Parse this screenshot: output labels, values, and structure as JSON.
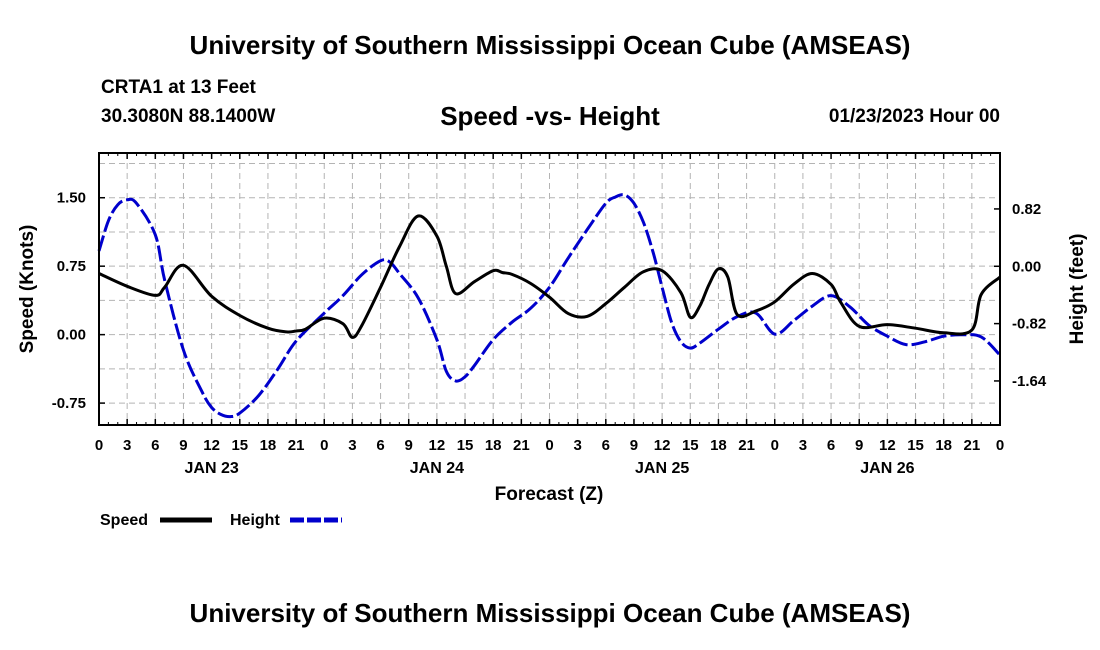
{
  "header": {
    "title": "University of Southern Mississippi Ocean Cube (AMSEAS)",
    "station": "CRTA1 at 13 Feet",
    "coords": "30.3080N  88.1400W",
    "subtitle": "Speed -vs- Height",
    "date": "01/23/2023 Hour 00"
  },
  "footer": {
    "title": "University of Southern Mississippi Ocean Cube (AMSEAS)"
  },
  "chart_data": {
    "type": "line",
    "xlabel": "Forecast (Z)",
    "ylabel_left": "Speed (Knots)",
    "ylabel_right": "Height (feet)",
    "x_range": [
      0,
      96
    ],
    "x_ticks": [
      0,
      3,
      6,
      9,
      12,
      15,
      18,
      21,
      24,
      27,
      30,
      33,
      36,
      39,
      42,
      45,
      48,
      51,
      54,
      57,
      60,
      63,
      66,
      69,
      72,
      75,
      78,
      81,
      84,
      87,
      90,
      93,
      96
    ],
    "x_tick_labels": [
      "0",
      "3",
      "6",
      "9",
      "12",
      "15",
      "18",
      "21",
      "0",
      "3",
      "6",
      "9",
      "12",
      "15",
      "18",
      "21",
      "0",
      "3",
      "6",
      "9",
      "12",
      "15",
      "18",
      "21",
      "0",
      "3",
      "6",
      "9",
      "12",
      "15",
      "18",
      "21",
      "0"
    ],
    "day_labels": [
      {
        "x": 12,
        "label": "JAN 23"
      },
      {
        "x": 36,
        "label": "JAN 24"
      },
      {
        "x": 60,
        "label": "JAN 25"
      },
      {
        "x": 84,
        "label": "JAN 26"
      }
    ],
    "y_left": {
      "range": [
        -0.99,
        1.99
      ],
      "ticks": [
        1.5,
        0.75,
        0.0,
        -0.75
      ],
      "tick_labels": [
        "1.50",
        "0.75",
        "0.00",
        "-0.75"
      ]
    },
    "y_right": {
      "range": [
        -2.27,
        1.62
      ],
      "ticks": [
        0.82,
        0.0,
        -0.82,
        -1.64
      ],
      "tick_labels": [
        "0.82",
        "0.00",
        "-0.82",
        "-1.64"
      ]
    },
    "grid": true,
    "legend": {
      "placement": "bottom-left",
      "speed_label": "Speed",
      "height_label": "Height"
    },
    "series": [
      {
        "name": "Speed",
        "axis": "left",
        "color": "#000000",
        "style": "solid",
        "x": [
          0,
          3,
          6,
          7,
          9,
          12,
          15,
          18,
          20,
          21,
          22,
          24,
          26,
          27,
          28,
          30,
          32,
          34,
          36,
          37,
          38,
          40,
          42,
          43,
          44,
          46,
          48,
          50,
          52,
          54,
          56,
          58,
          60,
          62,
          63,
          64,
          65,
          66,
          67,
          68,
          70,
          72,
          74,
          76,
          78,
          79,
          81,
          84,
          87,
          90,
          93,
          94,
          96
        ],
        "y": [
          0.67,
          0.53,
          0.43,
          0.52,
          0.76,
          0.42,
          0.21,
          0.07,
          0.03,
          0.04,
          0.06,
          0.18,
          0.12,
          -0.03,
          0.1,
          0.52,
          0.96,
          1.3,
          1.08,
          0.75,
          0.45,
          0.58,
          0.7,
          0.68,
          0.66,
          0.56,
          0.41,
          0.23,
          0.2,
          0.34,
          0.52,
          0.69,
          0.7,
          0.46,
          0.19,
          0.31,
          0.55,
          0.72,
          0.63,
          0.22,
          0.26,
          0.36,
          0.55,
          0.67,
          0.55,
          0.36,
          0.09,
          0.11,
          0.07,
          0.02,
          0.05,
          0.44,
          0.63
        ]
      },
      {
        "name": "Height",
        "axis": "right",
        "color": "#0000cc",
        "style": "dashed",
        "x": [
          0,
          1,
          2,
          3,
          4,
          6,
          7,
          9,
          11,
          12,
          13,
          14,
          15,
          17,
          19,
          21,
          24,
          26,
          28,
          30,
          31,
          32,
          34,
          36,
          37,
          38,
          39,
          40,
          42,
          44,
          46,
          48,
          50,
          52,
          54,
          55,
          56,
          57,
          58,
          59,
          60,
          61,
          62,
          63,
          64,
          66,
          68,
          70,
          72,
          74,
          76,
          78,
          80,
          82,
          84,
          86,
          88,
          90,
          92,
          94,
          96
        ],
        "y": [
          0.22,
          0.65,
          0.88,
          0.95,
          0.9,
          0.45,
          -0.2,
          -1.2,
          -1.8,
          -2.02,
          -2.12,
          -2.15,
          -2.1,
          -1.85,
          -1.48,
          -1.07,
          -0.67,
          -0.42,
          -0.12,
          0.08,
          0.06,
          -0.1,
          -0.45,
          -1.05,
          -1.5,
          -1.64,
          -1.58,
          -1.42,
          -1.05,
          -0.8,
          -0.6,
          -0.3,
          0.12,
          0.52,
          0.9,
          0.99,
          1.02,
          0.9,
          0.63,
          0.22,
          -0.3,
          -0.8,
          -1.08,
          -1.17,
          -1.1,
          -0.9,
          -0.72,
          -0.67,
          -0.97,
          -0.78,
          -0.57,
          -0.42,
          -0.58,
          -0.84,
          -1.0,
          -1.12,
          -1.08,
          -1.0,
          -0.98,
          -1.01,
          -1.27
        ]
      }
    ]
  }
}
